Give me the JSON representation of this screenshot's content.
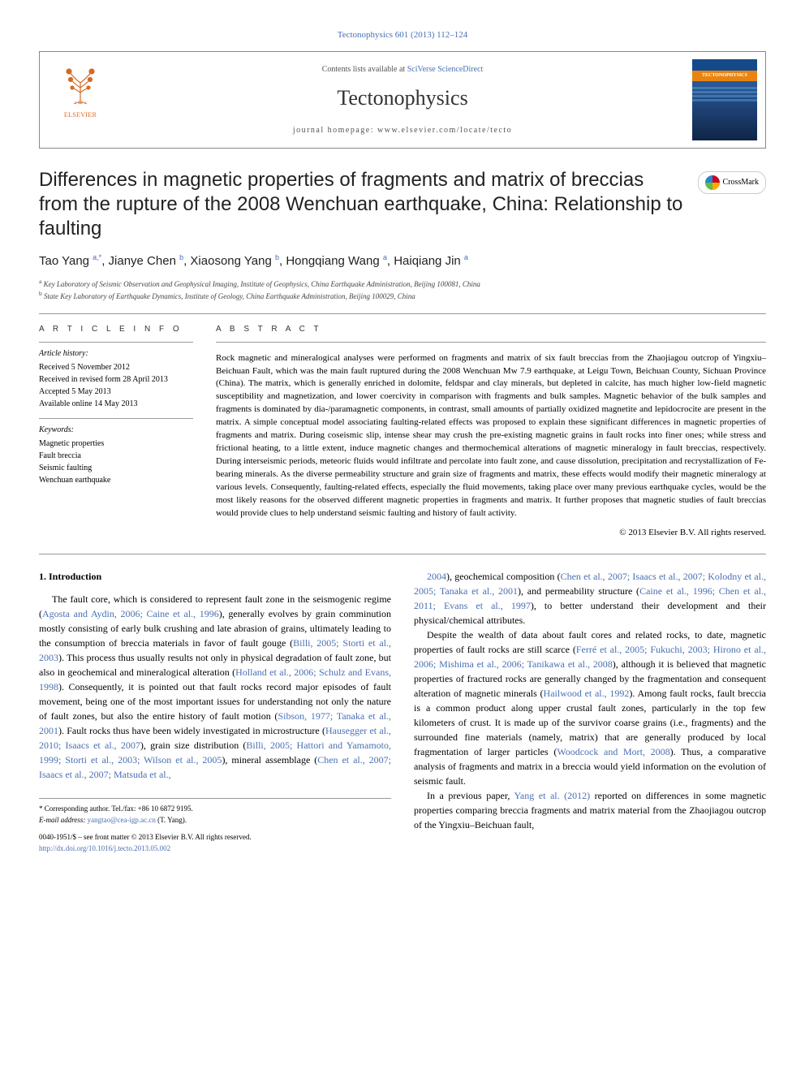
{
  "top_citation": "Tectonophysics 601 (2013) 112–124",
  "header": {
    "elsevier_label": "ELSEVIER",
    "contents_line_prefix": "Contents lists available at ",
    "contents_link": "SciVerse ScienceDirect",
    "journal_name": "Tectonophysics",
    "homepage_label": "journal homepage: ",
    "homepage_url": "www.elsevier.com/locate/tecto",
    "cover_label": "TECTONOPHYSICS"
  },
  "crossmark_label": "CrossMark",
  "title": "Differences in magnetic properties of fragments and matrix of breccias from the rupture of the 2008 Wenchuan earthquake, China: Relationship to faulting",
  "authors_html": "Tao Yang <sup>a,*</sup>, Jianye Chen <sup>b</sup>, Xiaosong Yang <sup>b</sup>, Hongqiang Wang <sup>a</sup>, Haiqiang Jin <sup>a</sup>",
  "affiliations": {
    "a": "Key Laboratory of Seismic Observation and Geophysical Imaging, Institute of Geophysics, China Earthquake Administration, Beijing 100081, China",
    "b": "State Key Laboratory of Earthquake Dynamics, Institute of Geology, China Earthquake Administration, Beijing 100029, China"
  },
  "article_info": {
    "heading": "A R T I C L E   I N F O",
    "history_label": "Article history:",
    "history": [
      "Received 5 November 2012",
      "Received in revised form 28 April 2013",
      "Accepted 5 May 2013",
      "Available online 14 May 2013"
    ],
    "keywords_label": "Keywords:",
    "keywords": [
      "Magnetic properties",
      "Fault breccia",
      "Seismic faulting",
      "Wenchuan earthquake"
    ]
  },
  "abstract": {
    "heading": "A B S T R A C T",
    "text": "Rock magnetic and mineralogical analyses were performed on fragments and matrix of six fault breccias from the Zhaojiagou outcrop of Yingxiu–Beichuan Fault, which was the main fault ruptured during the 2008 Wenchuan Mw 7.9 earthquake, at Leigu Town, Beichuan County, Sichuan Province (China). The matrix, which is generally enriched in dolomite, feldspar and clay minerals, but depleted in calcite, has much higher low-field magnetic susceptibility and magnetization, and lower coercivity in comparison with fragments and bulk samples. Magnetic behavior of the bulk samples and fragments is dominated by dia-/paramagnetic components, in contrast, small amounts of partially oxidized magnetite and lepidocrocite are present in the matrix. A simple conceptual model associating faulting-related effects was proposed to explain these significant differences in magnetic properties of fragments and matrix. During coseismic slip, intense shear may crush the pre-existing magnetic grains in fault rocks into finer ones; while stress and frictional heating, to a little extent, induce magnetic changes and thermochemical alterations of magnetic mineralogy in fault breccias, respectively. During interseismic periods, meteoric fluids would infiltrate and percolate into fault zone, and cause dissolution, precipitation and recrystallization of Fe-bearing minerals. As the diverse permeability structure and grain size of fragments and matrix, these effects would modify their magnetic mineralogy at various levels. Consequently, faulting-related effects, especially the fluid movements, taking place over many previous earthquake cycles, would be the most likely reasons for the observed different magnetic properties in fragments and matrix. It further proposes that magnetic studies of fault breccias would provide clues to help understand seismic faulting and history of fault activity.",
    "copyright": "© 2013 Elsevier B.V. All rights reserved."
  },
  "body": {
    "section_heading": "1. Introduction",
    "left_paragraphs": [
      "The fault core, which is considered to represent fault zone in the seismogenic regime (<a class='cite' href='#'>Agosta and Aydin, 2006; Caine et al., 1996</a>), generally evolves by grain comminution mostly consisting of early bulk crushing and late abrasion of grains, ultimately leading to the consumption of breccia materials in favor of fault gouge (<a class='cite' href='#'>Billi, 2005; Storti et al., 2003</a>). This process thus usually results not only in physical degradation of fault zone, but also in geochemical and mineralogical alteration (<a class='cite' href='#'>Holland et al., 2006; Schulz and Evans, 1998</a>). Consequently, it is pointed out that fault rocks record major episodes of fault movement, being one of the most important issues for understanding not only the nature of fault zones, but also the entire history of fault motion (<a class='cite' href='#'>Sibson, 1977; Tanaka et al., 2001</a>). Fault rocks thus have been widely investigated in microstructure (<a class='cite' href='#'>Hausegger et al., 2010; Isaacs et al., 2007</a>), grain size distribution (<a class='cite' href='#'>Billi, 2005; Hattori and Yamamoto, 1999; Storti et al., 2003; Wilson et al., 2005</a>), mineral assemblage (<a class='cite' href='#'>Chen et al., 2007; Isaacs et al., 2007; Matsuda et al.,</a>"
    ],
    "right_paragraphs": [
      "<a class='cite' href='#'>2004</a>), geochemical composition (<a class='cite' href='#'>Chen et al., 2007; Isaacs et al., 2007; Kolodny et al., 2005; Tanaka et al., 2001</a>), and permeability structure (<a class='cite' href='#'>Caine et al., 1996; Chen et al., 2011; Evans et al., 1997</a>), to better understand their development and their physical/chemical attributes.",
      "Despite the wealth of data about fault cores and related rocks, to date, magnetic properties of fault rocks are still scarce (<a class='cite' href='#'>Ferré et al., 2005; Fukuchi, 2003; Hirono et al., 2006; Mishima et al., 2006; Tanikawa et al., 2008</a>), although it is believed that magnetic properties of fractured rocks are generally changed by the fragmentation and consequent alteration of magnetic minerals (<a class='cite' href='#'>Hailwood et al., 1992</a>). Among fault rocks, fault breccia is a common product along upper crustal fault zones, particularly in the top few kilometers of crust. It is made up of the survivor coarse grains (i.e., fragments) and the surrounded fine materials (namely, matrix) that are generally produced by local fragmentation of larger particles (<a class='cite' href='#'>Woodcock and Mort, 2008</a>). Thus, a comparative analysis of fragments and matrix in a breccia would yield information on the evolution of seismic fault.",
      "In a previous paper, <a class='cite' href='#'>Yang et al. (2012)</a> reported on differences in some magnetic properties comparing breccia fragments and matrix material from the Zhaojiagou outcrop of the Yingxiu–Beichuan fault,"
    ]
  },
  "footer": {
    "corr_label": "* Corresponding author. Tel./fax: +86 10 6872 9195.",
    "email_label": "E-mail address: ",
    "email": "yangtao@cea-igp.ac.cn",
    "email_owner": " (T. Yang).",
    "copyright_line": "0040-1951/$ – see front matter © 2013 Elsevier B.V. All rights reserved.",
    "doi": "http://dx.doi.org/10.1016/j.tecto.2013.05.002"
  },
  "colors": {
    "link": "#4a6fb3",
    "elsevier_orange": "#d66a25",
    "cover_orange": "#e9830f",
    "cover_blue": "#144a8a"
  }
}
